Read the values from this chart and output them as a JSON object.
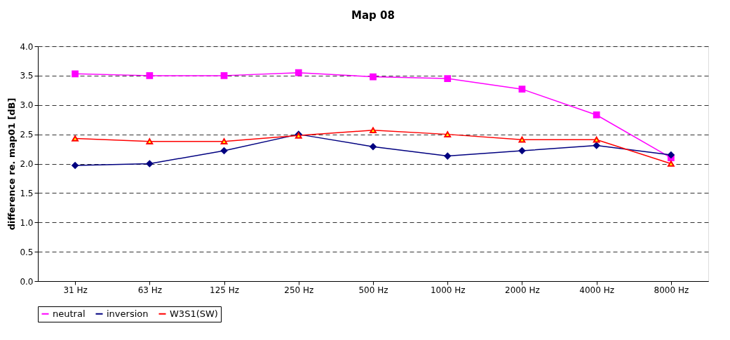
{
  "chart_data": {
    "type": "line",
    "title": "Map 08",
    "ylabel": "difference re. map01 [dB]",
    "categories": [
      "31 Hz",
      "63 Hz",
      "125 Hz",
      "250 Hz",
      "500 Hz",
      "1000 Hz",
      "2000 Hz",
      "4000 Hz",
      "8000 Hz"
    ],
    "series": [
      {
        "name": "neutral",
        "color": "#ff00ff",
        "marker": "square",
        "values": [
          3.53,
          3.5,
          3.5,
          3.55,
          3.48,
          3.45,
          3.27,
          2.83,
          2.1
        ]
      },
      {
        "name": "inversion",
        "color": "#000080",
        "marker": "diamond",
        "values": [
          1.97,
          2.0,
          2.22,
          2.5,
          2.29,
          2.13,
          2.22,
          2.31,
          2.15
        ]
      },
      {
        "name": "W3S1(SW)",
        "color": "#ff0000",
        "marker": "triangle",
        "values": [
          2.43,
          2.38,
          2.38,
          2.48,
          2.57,
          2.5,
          2.41,
          2.41,
          2.0
        ]
      }
    ],
    "ylim": [
      0,
      4
    ],
    "yticks": [
      {
        "value": 0,
        "label": "0.0"
      },
      0.5,
      {
        "value": 1,
        "label": "1.0"
      },
      1.5,
      {
        "value": 2,
        "label": "2.0"
      },
      2.5,
      {
        "value": 3,
        "label": "3.0"
      },
      3.5,
      {
        "value": 4,
        "label": "4.0"
      }
    ],
    "grid": "y",
    "legend": "bottom"
  }
}
